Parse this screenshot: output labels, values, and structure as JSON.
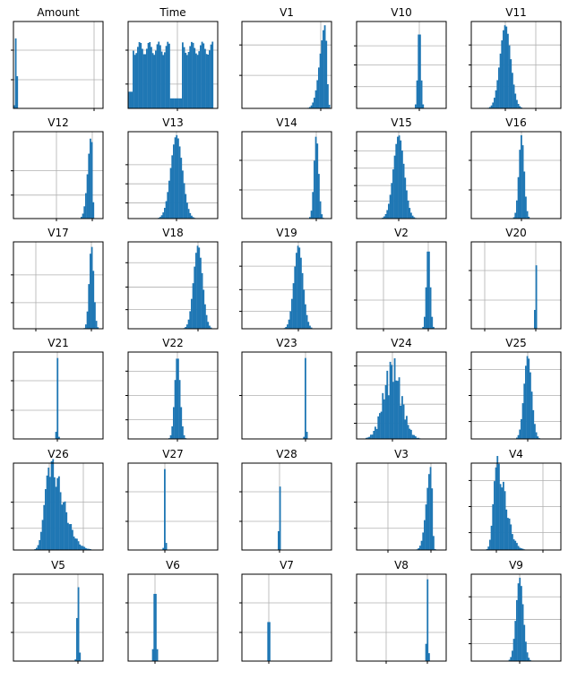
{
  "chart_data": {
    "type": "histogram-grid",
    "grid": {
      "rows": 6,
      "cols": 5,
      "show_gridlines": true
    },
    "bar_color": "#1f77b4",
    "panels": [
      {
        "title": "Amount",
        "shape": "spike",
        "center": 0.03,
        "spread": 0.01,
        "xgrid": [
          0.9
        ],
        "ygrid": [
          0.67,
          0.33
        ]
      },
      {
        "title": "Time",
        "shape": "bimodal",
        "center": 0.5,
        "spread": 0.4,
        "xgrid": [
          0.55
        ],
        "ygrid": [
          0.72,
          0.33
        ]
      },
      {
        "title": "V1",
        "shape": "skewleft",
        "center": 0.93,
        "spread": 0.06,
        "xgrid": [
          0.88
        ],
        "ygrid": [
          0.62,
          0.27
        ]
      },
      {
        "title": "V10",
        "shape": "spike",
        "center": 0.7,
        "spread": 0.02,
        "xgrid": [
          0.7
        ],
        "ygrid": [
          0.75,
          0.5,
          0.28
        ]
      },
      {
        "title": "V11",
        "shape": "normal",
        "center": 0.38,
        "spread": 0.12,
        "xgrid": [
          0.38,
          0.72
        ],
        "ygrid": [
          0.75,
          0.5,
          0.27
        ]
      },
      {
        "title": "V12",
        "shape": "skewleft",
        "center": 0.87,
        "spread": 0.04,
        "xgrid": [
          0.48,
          0.88
        ],
        "ygrid": [
          0.73,
          0.45
        ]
      },
      {
        "title": "V13",
        "shape": "normal",
        "center": 0.54,
        "spread": 0.13,
        "xgrid": [
          0.54
        ],
        "ygrid": [
          0.82,
          0.6,
          0.38
        ]
      },
      {
        "title": "V14",
        "shape": "spike",
        "center": 0.83,
        "spread": 0.03,
        "xgrid": [
          0.83
        ],
        "ygrid": [
          0.67,
          0.33
        ]
      },
      {
        "title": "V15",
        "shape": "normal",
        "center": 0.47,
        "spread": 0.12,
        "xgrid": [
          0.47
        ],
        "ygrid": [
          0.8,
          0.62,
          0.42,
          0.22
        ]
      },
      {
        "title": "V16",
        "shape": "spike",
        "center": 0.56,
        "spread": 0.035,
        "xgrid": [
          0.56
        ],
        "ygrid": [
          0.67,
          0.33
        ]
      },
      {
        "title": "V17",
        "shape": "spike",
        "center": 0.87,
        "spread": 0.03,
        "xgrid": [
          0.25,
          0.87
        ],
        "ygrid": [
          0.7,
          0.38
        ]
      },
      {
        "title": "V18",
        "shape": "normal",
        "center": 0.78,
        "spread": 0.1,
        "xgrid": [
          0.78
        ],
        "ygrid": [
          0.78,
          0.52,
          0.24
        ]
      },
      {
        "title": "V19",
        "shape": "normal",
        "center": 0.63,
        "spread": 0.1,
        "xgrid": [
          0.63
        ],
        "ygrid": [
          0.8,
          0.55,
          0.28
        ]
      },
      {
        "title": "V2",
        "shape": "spike",
        "center": 0.8,
        "spread": 0.025,
        "xgrid": [
          0.3,
          0.8
        ],
        "ygrid": [
          0.67,
          0.33
        ]
      },
      {
        "title": "V20",
        "shape": "spike",
        "center": 0.72,
        "spread": 0.008,
        "xgrid": [
          0.15,
          0.72
        ],
        "ygrid": [
          0.67,
          0.33
        ]
      },
      {
        "title": "V21",
        "shape": "spike",
        "center": 0.49,
        "spread": 0.008,
        "xgrid": [
          0.49
        ],
        "ygrid": [
          0.67,
          0.33
        ]
      },
      {
        "title": "V22",
        "shape": "normal",
        "center": 0.55,
        "spread": 0.06,
        "xgrid": [
          0.55
        ],
        "ygrid": [
          0.78,
          0.5,
          0.22
        ]
      },
      {
        "title": "V23",
        "shape": "spike",
        "center": 0.71,
        "spread": 0.008,
        "xgrid": [
          0.71
        ],
        "ygrid": [
          0.5
        ]
      },
      {
        "title": "V24",
        "shape": "multimodal",
        "center": 0.4,
        "spread": 0.18,
        "xgrid": [
          0.4
        ],
        "ygrid": [
          0.82,
          0.6,
          0.38,
          0.16
        ]
      },
      {
        "title": "V25",
        "shape": "spike",
        "center": 0.63,
        "spread": 0.05,
        "xgrid": [
          0.63
        ],
        "ygrid": [
          0.8,
          0.5,
          0.2
        ]
      },
      {
        "title": "V26",
        "shape": "skewright",
        "center": 0.4,
        "spread": 0.15,
        "xgrid": [
          0.4,
          0.78
        ],
        "ygrid": [
          0.75,
          0.45
        ]
      },
      {
        "title": "V27",
        "shape": "spike",
        "center": 0.41,
        "spread": 0.008,
        "xgrid": [
          0.41
        ],
        "ygrid": [
          0.67,
          0.33
        ]
      },
      {
        "title": "V28",
        "shape": "spike",
        "center": 0.42,
        "spread": 0.008,
        "xgrid": [
          0.42
        ],
        "ygrid": [
          0.67,
          0.33
        ]
      },
      {
        "title": "V3",
        "shape": "skewleft",
        "center": 0.83,
        "spread": 0.05,
        "xgrid": [
          0.35,
          0.83
        ],
        "ygrid": [
          0.75,
          0.45
        ]
      },
      {
        "title": "V4",
        "shape": "skewright",
        "center": 0.28,
        "spread": 0.1,
        "xgrid": [
          0.28,
          0.8
        ],
        "ygrid": [
          0.8,
          0.5,
          0.2
        ]
      },
      {
        "title": "V5",
        "shape": "spike",
        "center": 0.72,
        "spread": 0.012,
        "xgrid": [
          0.72
        ],
        "ygrid": [
          0.67,
          0.33
        ]
      },
      {
        "title": "V6",
        "shape": "spike",
        "center": 0.3,
        "spread": 0.015,
        "xgrid": [
          0.3
        ],
        "ygrid": [
          0.67,
          0.33
        ]
      },
      {
        "title": "V7",
        "shape": "spike",
        "center": 0.3,
        "spread": 0.008,
        "xgrid": [
          0.3
        ],
        "ygrid": [
          0.67,
          0.33
        ]
      },
      {
        "title": "V8",
        "shape": "spike",
        "center": 0.79,
        "spread": 0.01,
        "xgrid": [
          0.33,
          0.79
        ],
        "ygrid": [
          0.67,
          0.33
        ]
      },
      {
        "title": "V9",
        "shape": "normal",
        "center": 0.54,
        "spread": 0.08,
        "xgrid": [
          0.54
        ],
        "ygrid": [
          0.8,
          0.52,
          0.26
        ]
      }
    ]
  }
}
